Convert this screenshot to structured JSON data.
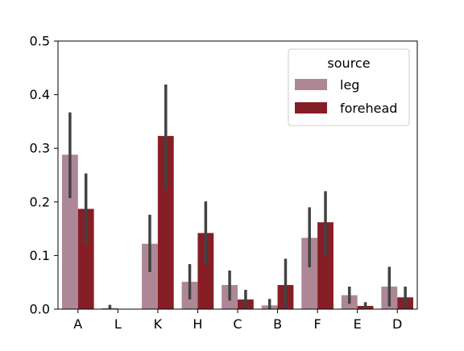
{
  "chart_data": {
    "type": "bar",
    "title": "",
    "xlabel": "",
    "ylabel": "",
    "categories": [
      "A",
      "L",
      "K",
      "H",
      "C",
      "B",
      "F",
      "E",
      "D"
    ],
    "ylim": [
      0,
      0.5
    ],
    "yticks": [
      "0.0",
      "0.1",
      "0.2",
      "0.3",
      "0.4",
      "0.5"
    ],
    "grid": false,
    "legend": {
      "title": "source",
      "placement": "top-right"
    },
    "series": [
      {
        "name": "leg",
        "color": "#ae8797",
        "values": [
          0.288,
          0.002,
          0.122,
          0.051,
          0.045,
          0.007,
          0.133,
          0.026,
          0.042
        ],
        "ci_low": [
          0.207,
          0.0,
          0.069,
          0.018,
          0.016,
          0.0,
          0.078,
          0.01,
          0.005
        ],
        "ci_high": [
          0.367,
          0.008,
          0.176,
          0.084,
          0.072,
          0.019,
          0.19,
          0.042,
          0.079
        ]
      },
      {
        "name": "forehead",
        "color": "#861f25",
        "values": [
          0.187,
          0.0,
          0.323,
          0.142,
          0.018,
          0.045,
          0.162,
          0.006,
          0.022
        ],
        "ci_low": [
          0.122,
          0.0,
          0.224,
          0.083,
          0.005,
          0.0,
          0.101,
          0.0,
          0.005
        ],
        "ci_high": [
          0.253,
          0.0,
          0.419,
          0.201,
          0.036,
          0.094,
          0.22,
          0.013,
          0.042
        ]
      }
    ]
  }
}
